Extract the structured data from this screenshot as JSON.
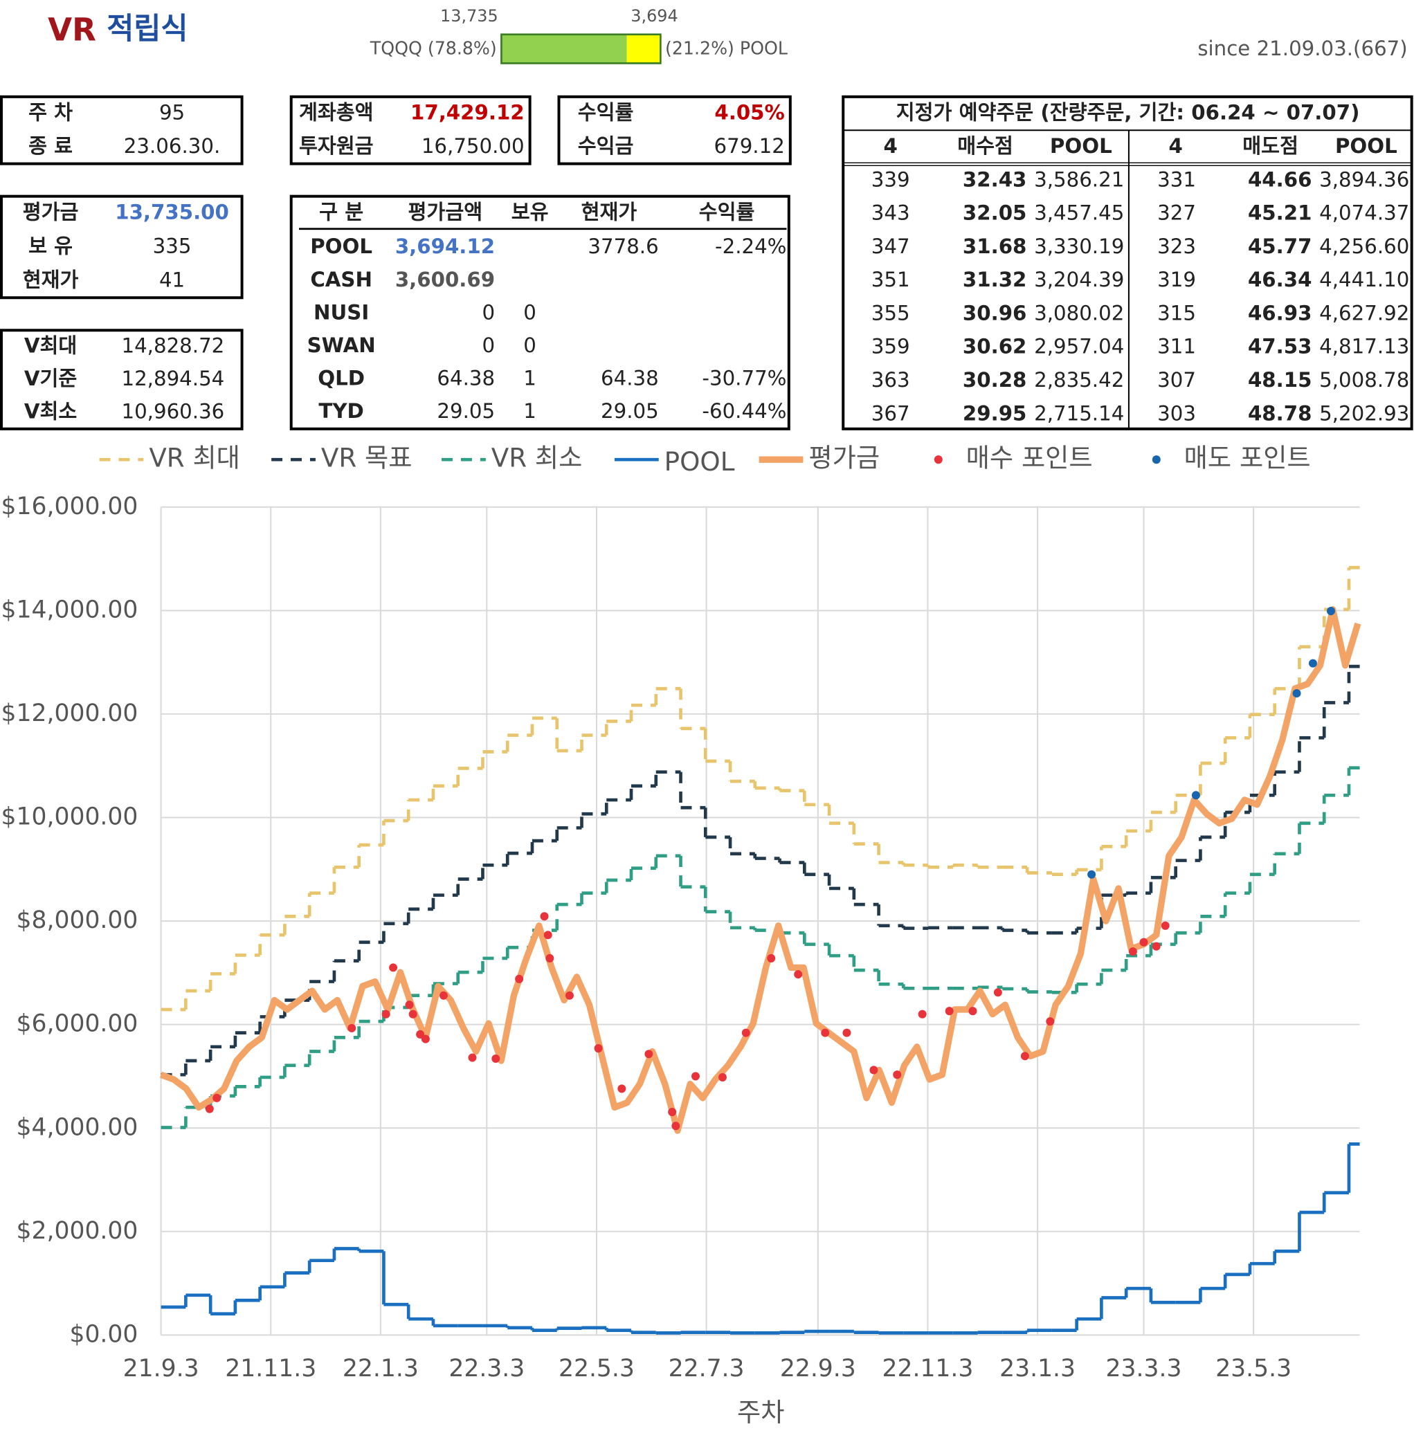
{
  "header": {
    "title": [
      "VR",
      "적립식"
    ],
    "since": "since 21.09.03.(667)",
    "allocation": {
      "names": [
        "TQQQ (78.8%)",
        "(21.2%) POOL"
      ],
      "values": [
        13735,
        3694
      ],
      "value_labels": [
        "13,735",
        "3,694"
      ],
      "colors": [
        "#92d050",
        "#ffff00"
      ]
    }
  },
  "summary_boxes": [
    {
      "rows": [
        [
          "주 차",
          "95"
        ],
        [
          "종 료",
          "23.06.30."
        ]
      ]
    },
    {
      "rows": [
        [
          "계좌총액",
          "17,429.12"
        ],
        [
          "투자원금",
          "16,750.00"
        ]
      ],
      "emphasis": "#c00000"
    },
    {
      "rows": [
        [
          "수익률",
          "4.05%"
        ],
        [
          "수익금",
          "679.12"
        ]
      ],
      "emphasis": "#c00000"
    },
    {
      "rows": [
        [
          "평가금",
          "13,735.00"
        ],
        [
          "보 유",
          "335"
        ],
        [
          "현재가",
          "41"
        ]
      ],
      "emphasis": "#4472c4"
    },
    {
      "rows": [
        [
          "V최대",
          "14,828.72"
        ],
        [
          "V기준",
          "12,894.54"
        ],
        [
          "V최소",
          "10,960.36"
        ]
      ]
    }
  ],
  "holdings": {
    "columns": [
      "구 분",
      "평가금액",
      "보유",
      "현재가",
      "수익률"
    ],
    "emphasis": "#4472c4",
    "rows": [
      [
        "POOL",
        "3,694.12",
        null,
        "3778.6",
        "-2.24%"
      ],
      [
        "CASH",
        "3,600.69",
        null,
        null,
        null
      ],
      [
        "NUSI",
        "0",
        "0",
        null,
        null
      ],
      [
        "SWAN",
        "0",
        "0",
        null,
        null
      ],
      [
        "QLD",
        "64.38",
        "1",
        "64.38",
        "-30.77%"
      ],
      [
        "TYD",
        "29.05",
        "1",
        "29.05",
        "-60.44%"
      ]
    ]
  },
  "orders": {
    "title": "지정가 예약주문 (잔량주문, 기간: 06.24 ~ 07.07)",
    "columns": [
      "4",
      "매수점",
      "POOL",
      "4",
      "매도점",
      "POOL"
    ],
    "rows": [
      [
        "339",
        "32.43",
        "3,586.21",
        "331",
        "44.66",
        "3,894.36"
      ],
      [
        "343",
        "32.05",
        "3,457.45",
        "327",
        "45.21",
        "4,074.37"
      ],
      [
        "347",
        "31.68",
        "3,330.19",
        "323",
        "45.77",
        "4,256.60"
      ],
      [
        "351",
        "31.32",
        "3,204.39",
        "319",
        "46.34",
        "4,441.10"
      ],
      [
        "355",
        "30.96",
        "3,080.02",
        "315",
        "46.93",
        "4,627.92"
      ],
      [
        "359",
        "30.62",
        "2,957.04",
        "311",
        "47.53",
        "4,817.13"
      ],
      [
        "363",
        "30.28",
        "2,835.42",
        "307",
        "48.15",
        "5,008.78"
      ],
      [
        "367",
        "29.95",
        "2,715.14",
        "303",
        "48.78",
        "5,202.93"
      ]
    ]
  },
  "chart_data": {
    "type": "line",
    "x_label": "주차",
    "grid": true,
    "legend": "top",
    "xlim": [
      0,
      666
    ],
    "xticks": [
      {
        "value": 0,
        "label": "21.9.3"
      },
      {
        "value": 61,
        "label": "21.11.3"
      },
      {
        "value": 122,
        "label": "22.1.3"
      },
      {
        "value": 181,
        "label": "22.3.3"
      },
      {
        "value": 242,
        "label": "22.5.3"
      },
      {
        "value": 303,
        "label": "22.7.3"
      },
      {
        "value": 365,
        "label": "22.9.3"
      },
      {
        "value": 426,
        "label": "22.11.3"
      },
      {
        "value": 487,
        "label": "23.1.3"
      },
      {
        "value": 546,
        "label": "23.3.3"
      },
      {
        "value": 607,
        "label": "23.5.3"
      }
    ],
    "ylim": [
      0,
      16000
    ],
    "yticks": [
      {
        "value": 0,
        "label": "$0.00"
      },
      {
        "value": 2000,
        "label": "$2,000.00"
      },
      {
        "value": 4000,
        "label": "$4,000.00"
      },
      {
        "value": 6000,
        "label": "$6,000.00"
      },
      {
        "value": 8000,
        "label": "$8,000.00"
      },
      {
        "value": 10000,
        "label": "$10,000.00"
      },
      {
        "value": 12000,
        "label": "$12,000.00"
      },
      {
        "value": 14000,
        "label": "$14,000.00"
      },
      {
        "value": 16000,
        "label": "$16,000.00"
      }
    ],
    "series": [
      {
        "name": "VR 최대",
        "color": "#e8c46c",
        "mode": "step",
        "dashed": true,
        "x": [
          0,
          13.75,
          27.5,
          41.25,
          55,
          68.75,
          82.5,
          96.25,
          110,
          123.75,
          137.5,
          151.25,
          165,
          178.75,
          192.5,
          206.25,
          220,
          233.75,
          247.5,
          261.25,
          275,
          288.75,
          302.5,
          316.25,
          330,
          343.75,
          357.5,
          371.25,
          385,
          398.75,
          412.5,
          426.25,
          440,
          453.75,
          467.5,
          481.25,
          495,
          508.75,
          522.5,
          536.25,
          550,
          563.75,
          577.5,
          591.25,
          605,
          618.75,
          632.5,
          646.25,
          660
        ],
        "values": [
          6290,
          6650,
          6980,
          7340,
          7730,
          8090,
          8540,
          9040,
          9470,
          9940,
          10340,
          10610,
          10950,
          11270,
          11590,
          11920,
          11290,
          11590,
          11860,
          12170,
          12490,
          11720,
          11090,
          10700,
          10570,
          10520,
          10250,
          9890,
          9490,
          9130,
          9080,
          9040,
          9080,
          9040,
          9040,
          8930,
          8900,
          8990,
          9440,
          9740,
          10100,
          10430,
          11050,
          11540,
          11990,
          12490,
          13300,
          14020,
          14830
        ]
      },
      {
        "name": "VR 목표",
        "color": "#22394c",
        "mode": "step",
        "dashed": true,
        "x": [
          0,
          13.75,
          27.5,
          41.25,
          55,
          68.75,
          82.5,
          96.25,
          110,
          123.75,
          137.5,
          151.25,
          165,
          178.75,
          192.5,
          206.25,
          220,
          233.75,
          247.5,
          261.25,
          275,
          288.75,
          302.5,
          316.25,
          330,
          343.75,
          357.5,
          371.25,
          385,
          398.75,
          412.5,
          426.25,
          440,
          453.75,
          467.5,
          481.25,
          495,
          508.75,
          522.5,
          536.25,
          550,
          563.75,
          577.5,
          591.25,
          605,
          618.75,
          632.5,
          646.25,
          660
        ],
        "values": [
          5030,
          5300,
          5570,
          5840,
          6150,
          6470,
          6830,
          7230,
          7590,
          7950,
          8230,
          8500,
          8810,
          9080,
          9310,
          9550,
          9800,
          10070,
          10340,
          10610,
          10880,
          10190,
          9620,
          9300,
          9210,
          9130,
          8900,
          8630,
          8320,
          7910,
          7860,
          7870,
          7870,
          7870,
          7820,
          7770,
          7770,
          7860,
          8500,
          8540,
          8840,
          9170,
          9620,
          10100,
          10430,
          10880,
          11540,
          12220,
          12920
        ]
      },
      {
        "name": "VR 최소",
        "color": "#2f9e85",
        "mode": "step",
        "dashed": true,
        "x": [
          0,
          13.75,
          27.5,
          41.25,
          55,
          68.75,
          82.5,
          96.25,
          110,
          123.75,
          137.5,
          151.25,
          165,
          178.75,
          192.5,
          206.25,
          220,
          233.75,
          247.5,
          261.25,
          275,
          288.75,
          302.5,
          316.25,
          330,
          343.75,
          357.5,
          371.25,
          385,
          398.75,
          412.5,
          426.25,
          440,
          453.75,
          467.5,
          481.25,
          495,
          508.75,
          522.5,
          536.25,
          550,
          563.75,
          577.5,
          591.25,
          605,
          618.75,
          632.5,
          646.25,
          660
        ],
        "values": [
          4010,
          4400,
          4620,
          4800,
          4980,
          5210,
          5480,
          5750,
          6060,
          6330,
          6560,
          6790,
          7010,
          7280,
          7490,
          7820,
          8320,
          8540,
          8790,
          9020,
          9260,
          8660,
          8180,
          7870,
          7820,
          7770,
          7550,
          7330,
          7050,
          6780,
          6700,
          6700,
          6700,
          6720,
          6690,
          6630,
          6620,
          6780,
          7050,
          7330,
          7550,
          7770,
          8090,
          8540,
          8900,
          9300,
          9890,
          10430,
          10960
        ]
      },
      {
        "name": "POOL",
        "color": "#1a6fc1",
        "mode": "step",
        "dashed": false,
        "x": [
          0,
          13.75,
          27.5,
          41.25,
          55,
          68.75,
          82.5,
          96.25,
          110,
          123.75,
          137.5,
          151.25,
          165,
          178.75,
          192.5,
          206.25,
          220,
          233.75,
          247.5,
          261.25,
          275,
          288.75,
          302.5,
          316.25,
          330,
          343.75,
          357.5,
          371.25,
          385,
          398.75,
          412.5,
          426.25,
          440,
          453.75,
          467.5,
          481.25,
          495,
          508.75,
          522.5,
          536.25,
          550,
          563.75,
          577.5,
          591.25,
          605,
          618.75,
          632.5,
          646.25,
          660
        ],
        "values": [
          540,
          770,
          410,
          670,
          930,
          1200,
          1440,
          1670,
          1620,
          590,
          310,
          180,
          180,
          180,
          140,
          90,
          130,
          140,
          90,
          50,
          40,
          50,
          50,
          40,
          40,
          50,
          70,
          70,
          50,
          40,
          40,
          40,
          40,
          50,
          50,
          90,
          90,
          310,
          720,
          900,
          630,
          630,
          900,
          1170,
          1380,
          1620,
          2370,
          2750,
          3690
        ]
      },
      {
        "name": "평가금",
        "color": "#f2a365",
        "mode": "line",
        "dashed": false,
        "x": [
          0,
          7,
          14,
          21,
          28,
          35,
          42,
          49,
          56,
          63,
          70,
          77,
          84,
          91,
          98,
          105,
          112,
          119,
          126,
          133,
          140,
          147,
          154,
          161,
          168,
          175,
          182,
          189,
          196,
          203,
          210,
          217,
          224,
          231,
          238,
          245,
          252,
          259,
          266,
          273,
          280,
          287,
          294,
          301,
          308,
          315,
          322,
          329,
          336,
          343,
          350,
          357,
          364,
          371,
          378,
          385,
          392,
          399,
          406,
          413,
          420,
          427,
          434,
          441,
          448,
          455,
          462,
          469,
          476,
          483,
          490,
          497,
          504,
          511,
          518,
          525,
          532,
          539,
          546,
          553,
          560,
          567,
          574,
          581,
          588,
          595,
          602,
          609,
          616,
          623,
          630,
          637,
          644,
          651,
          658,
          665
        ],
        "values": [
          5030,
          4940,
          4760,
          4400,
          4550,
          4760,
          5300,
          5570,
          5750,
          6470,
          6290,
          6470,
          6650,
          6290,
          6470,
          5930,
          6740,
          6830,
          6290,
          7010,
          6290,
          5750,
          6740,
          6470,
          5930,
          5480,
          6020,
          5300,
          6560,
          7280,
          7910,
          7100,
          6470,
          6920,
          6380,
          5390,
          4400,
          4490,
          4850,
          5480,
          4850,
          3950,
          4850,
          4580,
          4940,
          5210,
          5570,
          6020,
          7100,
          7910,
          7100,
          7100,
          6020,
          5840,
          5660,
          5480,
          4580,
          5120,
          4490,
          5210,
          5570,
          4940,
          5030,
          6290,
          6290,
          6650,
          6200,
          6380,
          5750,
          5390,
          5480,
          6380,
          6740,
          7370,
          8810,
          8000,
          8630,
          7460,
          7550,
          7730,
          9260,
          9620,
          10340,
          10070,
          9890,
          9980,
          10340,
          10250,
          10790,
          11500,
          12490,
          12580,
          12940,
          14020,
          12940,
          13750
        ]
      },
      {
        "name": "매수 포인트",
        "color": "#e8333b",
        "mode": "scatter",
        "x": [
          27,
          31,
          106,
          125,
          129,
          138,
          140,
          144,
          147,
          157,
          173,
          186,
          199,
          213,
          215,
          216,
          227,
          243,
          256,
          271,
          284,
          286,
          297,
          312,
          325,
          339,
          354,
          369,
          381,
          396,
          409,
          423,
          438,
          451,
          465,
          480,
          494,
          540,
          546,
          553,
          558
        ],
        "values": [
          4370,
          4580,
          5930,
          6200,
          7100,
          6380,
          6200,
          5810,
          5720,
          6560,
          5360,
          5340,
          6880,
          8090,
          7730,
          7280,
          6560,
          5540,
          4760,
          5430,
          4310,
          4040,
          5000,
          4980,
          5840,
          7280,
          6970,
          5840,
          5840,
          5120,
          5030,
          6200,
          6260,
          6260,
          6620,
          5390,
          6060,
          7410,
          7590,
          7510,
          7910
        ]
      },
      {
        "name": "매도 포인트",
        "color": "#1665ae",
        "mode": "scatter",
        "x": [
          517,
          575,
          631,
          640,
          650
        ],
        "values": [
          8900,
          10430,
          12400,
          12980,
          13990
        ]
      }
    ]
  }
}
